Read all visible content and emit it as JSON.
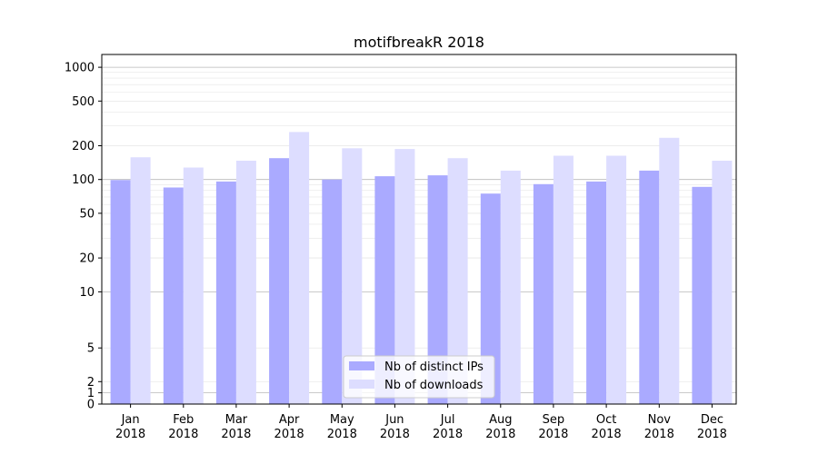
{
  "chart_data": {
    "type": "bar",
    "title": "motifbreakR 2018",
    "xlabel": "",
    "ylabel": "",
    "yscale": "symlog",
    "ylim": [
      0,
      1300
    ],
    "yticks": [
      0,
      1,
      2,
      5,
      10,
      20,
      50,
      100,
      200,
      500,
      1000
    ],
    "yticklabels": [
      "0",
      "1",
      "2",
      "5",
      "10",
      "20",
      "50",
      "100",
      "200",
      "500",
      "1000"
    ],
    "grid": true,
    "legend_position": "bottom-center",
    "categories": [
      "Jan\n2018",
      "Feb\n2018",
      "Mar\n2018",
      "Apr\n2018",
      "May\n2018",
      "Jun\n2018",
      "Jul\n2018",
      "Aug\n2018",
      "Sep\n2018",
      "Oct\n2018",
      "Nov\n2018",
      "Dec\n2018"
    ],
    "series": [
      {
        "name": "Nb of distinct IPs",
        "color": "#aaaaff",
        "values": [
          99,
          85,
          96,
          155,
          100,
          107,
          109,
          75,
          91,
          96,
          120,
          86
        ]
      },
      {
        "name": "Nb of downloads",
        "color": "#ddddff",
        "values": [
          158,
          128,
          147,
          265,
          190,
          187,
          155,
          120,
          163,
          163,
          235,
          147
        ]
      }
    ]
  }
}
